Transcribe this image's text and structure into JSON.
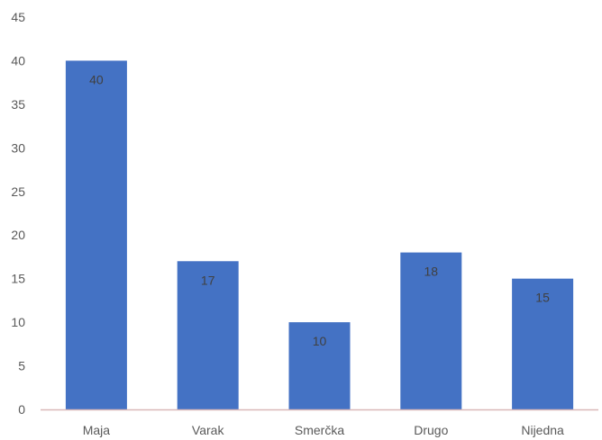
{
  "chart_data": {
    "type": "bar",
    "title": "",
    "xlabel": "",
    "ylabel": "",
    "categories": [
      "Maja",
      "Varak",
      "Smerčka",
      "Drugo",
      "Nijedna"
    ],
    "values": [
      40,
      17,
      10,
      18,
      15
    ],
    "data_labels": [
      "40",
      "17",
      "10",
      "18",
      "15"
    ],
    "ylim": [
      0,
      45
    ],
    "yticks": [
      "0",
      "5",
      "10",
      "15",
      "20",
      "25",
      "30",
      "35",
      "40",
      "45"
    ],
    "grid": false,
    "legend": "none",
    "colors": {
      "bar": "#4472c4",
      "axis": "#d9b8b8",
      "text": "#595959",
      "data_label": "#404040"
    }
  }
}
